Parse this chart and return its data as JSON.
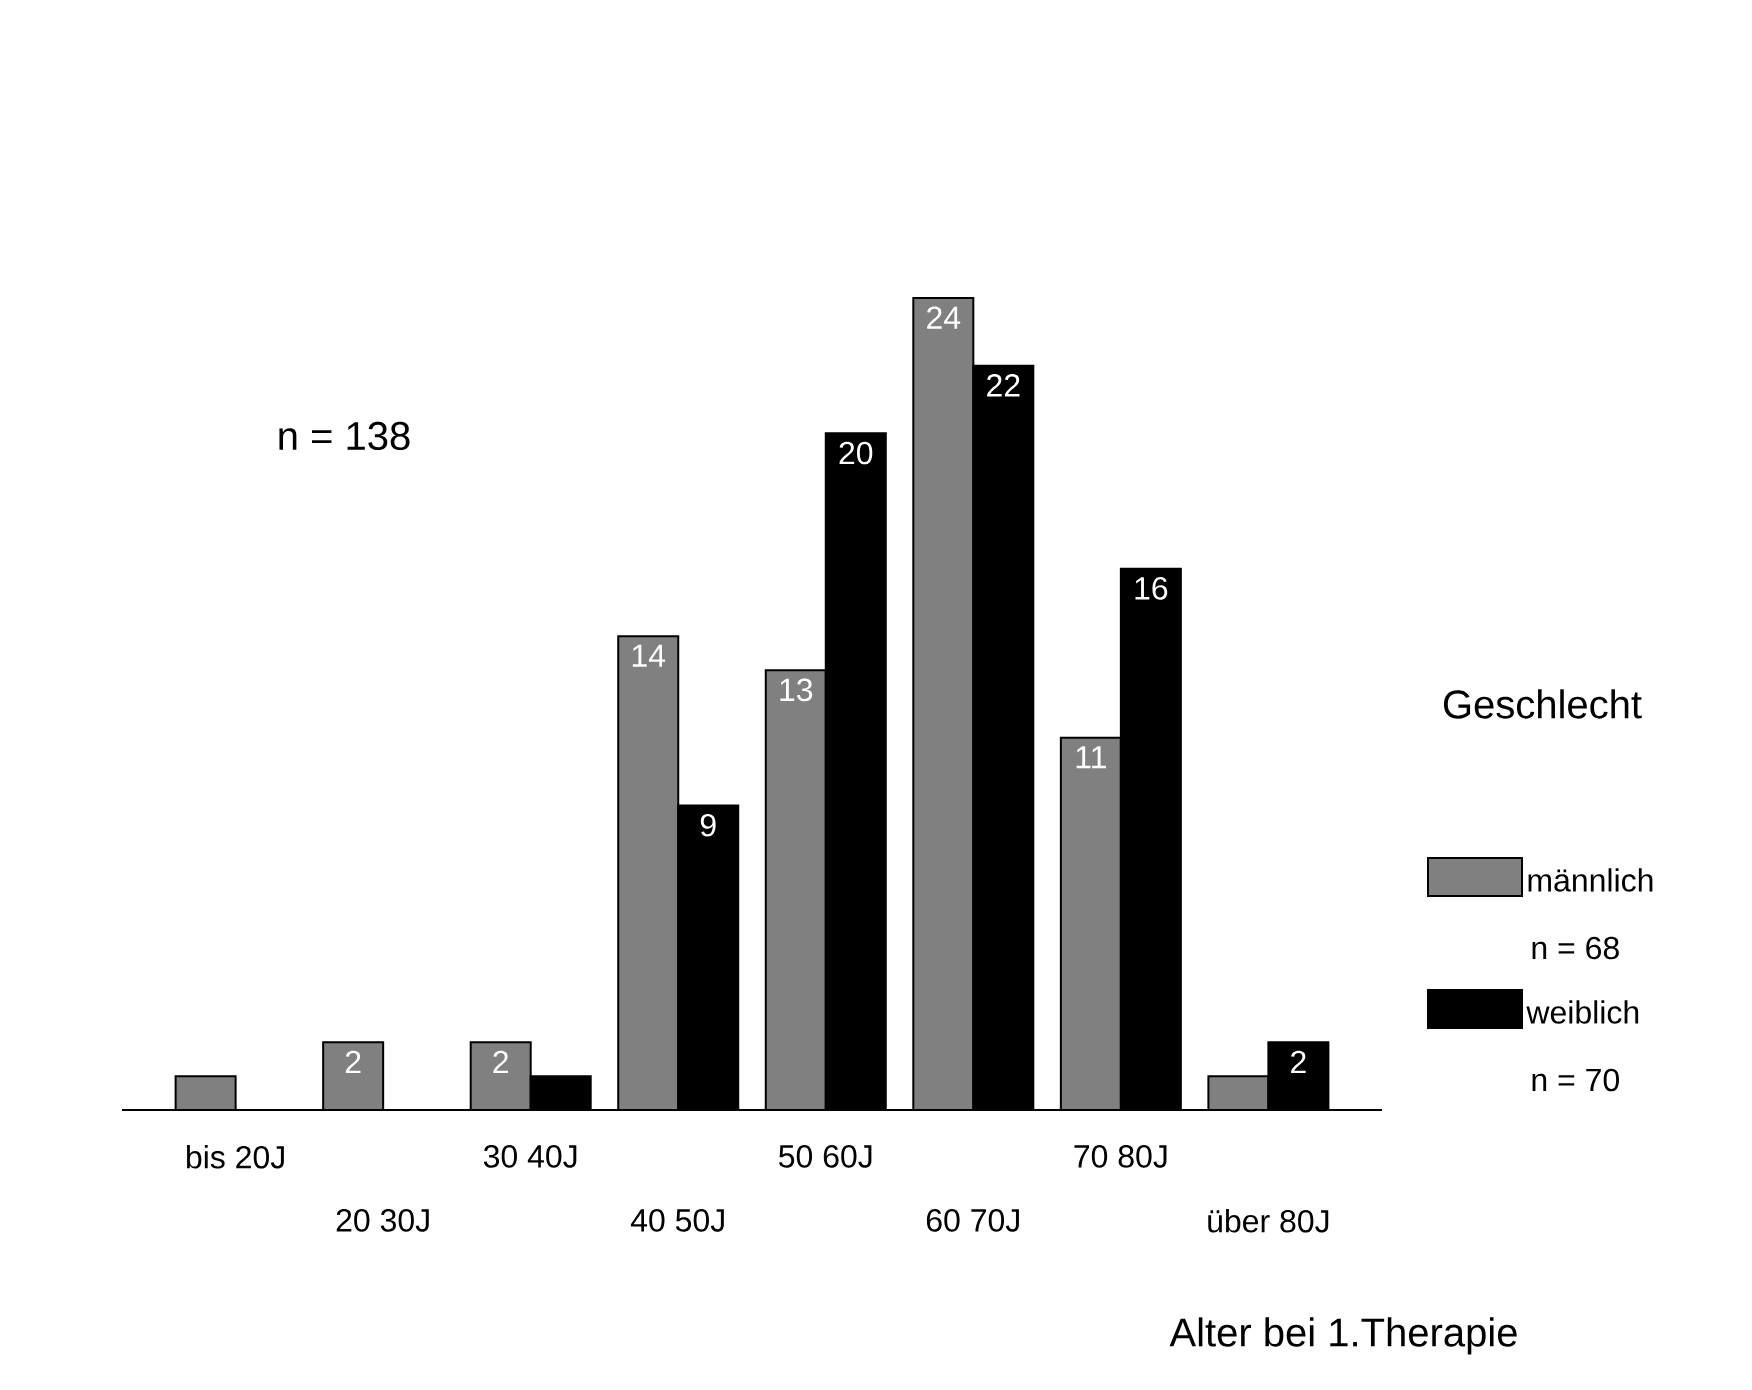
{
  "chart_data": {
    "type": "bar",
    "categories": [
      "bis 20J",
      "20 30J",
      "30 40J",
      "40 50J",
      "50 60J",
      "60 70J",
      "70 80J",
      "über 80J"
    ],
    "series": [
      {
        "name": "männlich",
        "color": "#808080",
        "values": [
          1,
          2,
          2,
          14,
          13,
          24,
          11,
          1
        ],
        "value_labels": [
          null,
          "2",
          "2",
          "14",
          "13",
          "24",
          "11",
          null
        ]
      },
      {
        "name": "weiblich",
        "color": "#000000",
        "values": [
          0,
          0,
          1,
          9,
          20,
          22,
          16,
          2
        ],
        "value_labels": [
          null,
          null,
          null,
          "9",
          "20",
          "22",
          "16",
          "2"
        ]
      }
    ],
    "xlabel": "Alter bei 1.Therapie",
    "legend_title": "Geschlecht",
    "legend": "right",
    "annotations": [
      "n = 138",
      "n = 68",
      "n = 70"
    ]
  }
}
